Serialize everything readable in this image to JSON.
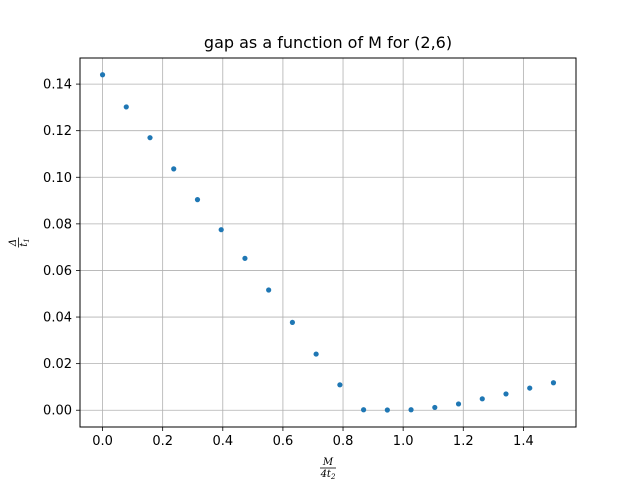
{
  "chart_data": {
    "type": "scatter",
    "title": "gap as a function of M for (2,6)",
    "xlabel": {
      "numerator": "M",
      "denominator": "4t",
      "denominator_sub": "2"
    },
    "ylabel": {
      "numerator": "Δ",
      "denominator": "t",
      "denominator_sub": "1"
    },
    "xlim": [
      -0.075,
      1.575
    ],
    "ylim": [
      -0.0072,
      0.1512
    ],
    "xticks": [
      0.0,
      0.2,
      0.4,
      0.6,
      0.8,
      1.0,
      1.2,
      1.4
    ],
    "xtick_labels": [
      "0.0",
      "0.2",
      "0.4",
      "0.6",
      "0.8",
      "1.0",
      "1.2",
      "1.4"
    ],
    "yticks": [
      0.0,
      0.02,
      0.04,
      0.06,
      0.08,
      0.1,
      0.12,
      0.14
    ],
    "ytick_labels": [
      "0.00",
      "0.02",
      "0.04",
      "0.06",
      "0.08",
      "0.10",
      "0.12",
      "0.14"
    ],
    "grid": true,
    "series": [
      {
        "color": "#1f77b4",
        "x": [
          0.0,
          0.0789,
          0.1579,
          0.2368,
          0.3158,
          0.3947,
          0.4737,
          0.5526,
          0.6316,
          0.7105,
          0.7895,
          0.8684,
          0.9474,
          1.0263,
          1.1053,
          1.1842,
          1.2632,
          1.3421,
          1.4211,
          1.5
        ],
        "y": [
          0.144,
          0.1302,
          0.117,
          0.1036,
          0.0904,
          0.0775,
          0.0652,
          0.0516,
          0.0377,
          0.0241,
          0.0109,
          0.0002,
          0.0001,
          0.0002,
          0.0012,
          0.0027,
          0.0049,
          0.007,
          0.0095,
          0.0118
        ]
      }
    ]
  }
}
